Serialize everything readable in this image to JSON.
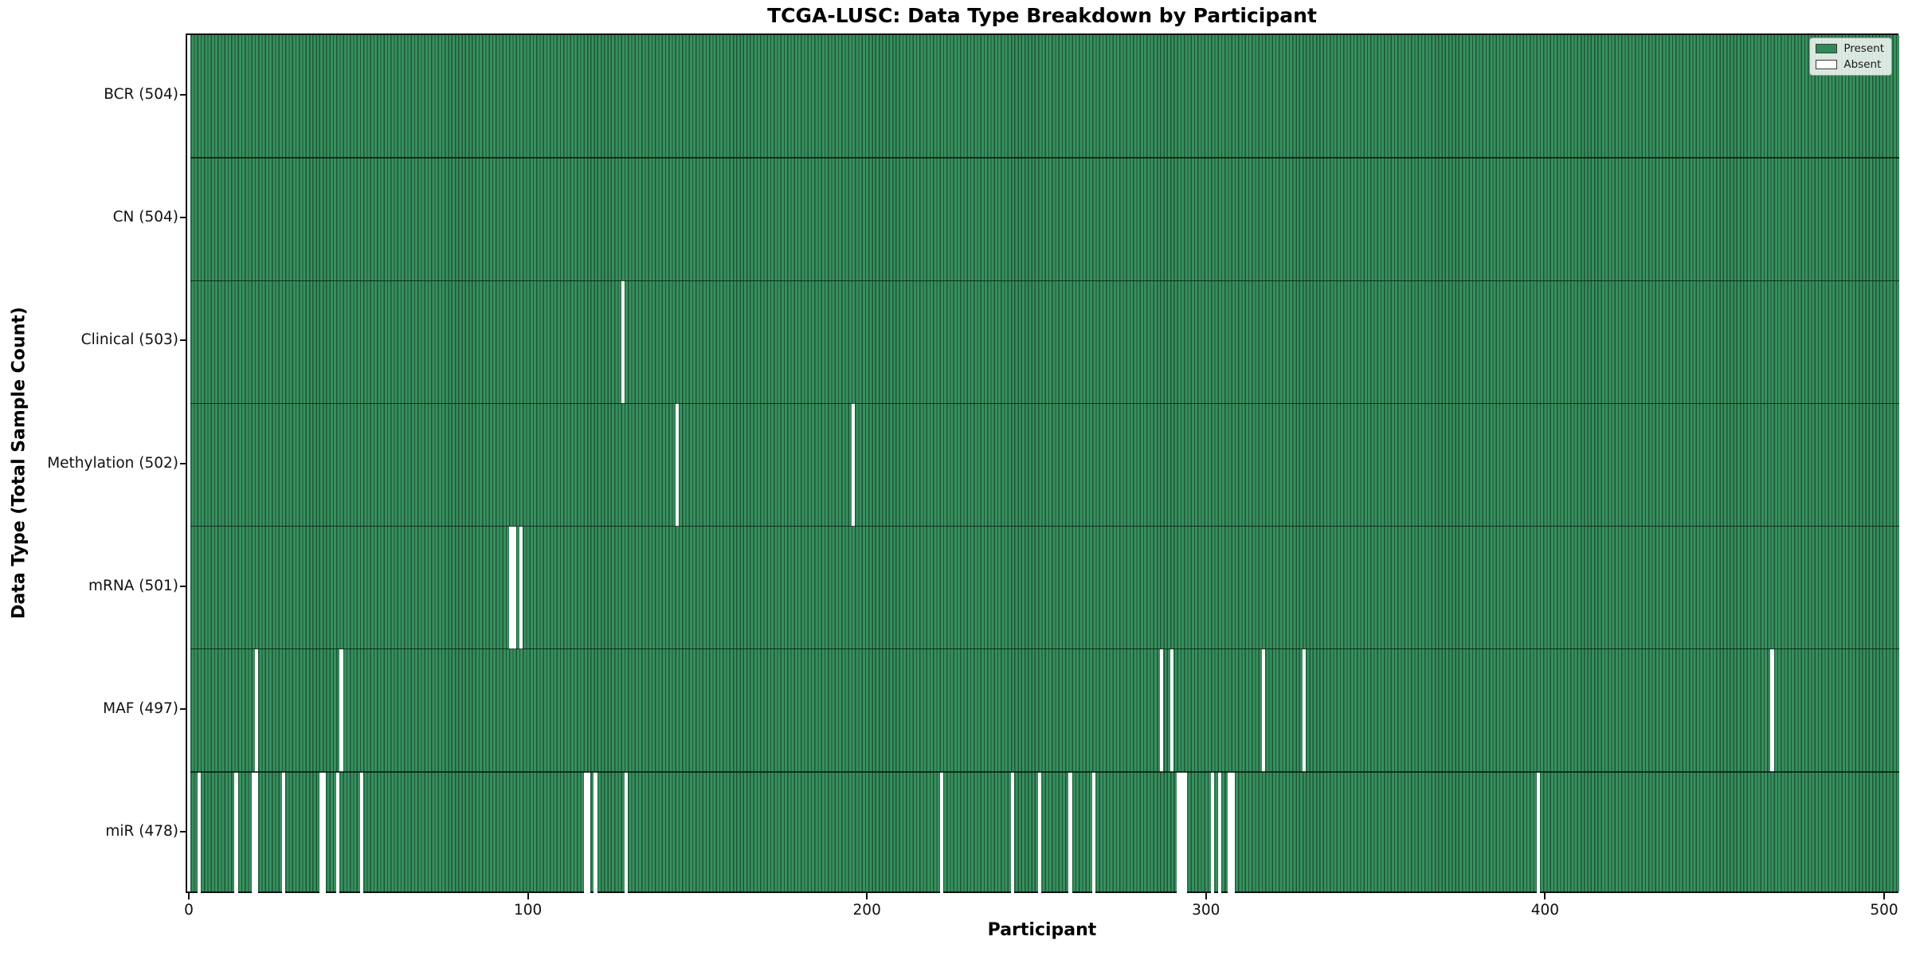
{
  "chart_data": {
    "type": "heatmap",
    "title": "TCGA-LUSC: Data Type Breakdown by Participant",
    "xlabel": "Participant",
    "ylabel": "Data Type (Total Sample Count)",
    "n_participants": 504,
    "x_ticks": [
      0,
      100,
      200,
      300,
      400,
      500
    ],
    "x_tick_labels": [
      "0",
      "100",
      "200",
      "300",
      "400",
      "500"
    ],
    "xlim": [
      0,
      504
    ],
    "grid": false,
    "legend_position": "upper right",
    "legend": [
      {
        "label": "Present",
        "color": "#2e8b57"
      },
      {
        "label": "Absent",
        "color": "#ffffff"
      }
    ],
    "colors": {
      "bar_fill": "#37905e",
      "bar_edge": "#1e5537",
      "absent": "#ffffff",
      "text": "#111111"
    },
    "rows": [
      {
        "label": "BCR (504)",
        "data_type": "BCR",
        "present_count": 504,
        "absent_participants": []
      },
      {
        "label": "CN (504)",
        "data_type": "CN",
        "present_count": 504,
        "absent_participants": []
      },
      {
        "label": "Clinical (503)",
        "data_type": "Clinical",
        "present_count": 503,
        "absent_participants": [
          127
        ]
      },
      {
        "label": "Methylation (502)",
        "data_type": "Methylation",
        "present_count": 502,
        "absent_participants": [
          143,
          195
        ]
      },
      {
        "label": "mRNA (501)",
        "data_type": "mRNA",
        "present_count": 501,
        "absent_participants": [
          94,
          95,
          97
        ]
      },
      {
        "label": "MAF (497)",
        "data_type": "MAF",
        "present_count": 497,
        "absent_participants": [
          19,
          44,
          286,
          289,
          316,
          328,
          466
        ]
      },
      {
        "label": "miR (478)",
        "data_type": "miR",
        "present_count": 478,
        "absent_participants": [
          2,
          13,
          18,
          19,
          27,
          38,
          39,
          43,
          50,
          116,
          117,
          119,
          128,
          221,
          242,
          250,
          259,
          266,
          291,
          292,
          293,
          301,
          303,
          306,
          307,
          397
        ]
      }
    ]
  }
}
